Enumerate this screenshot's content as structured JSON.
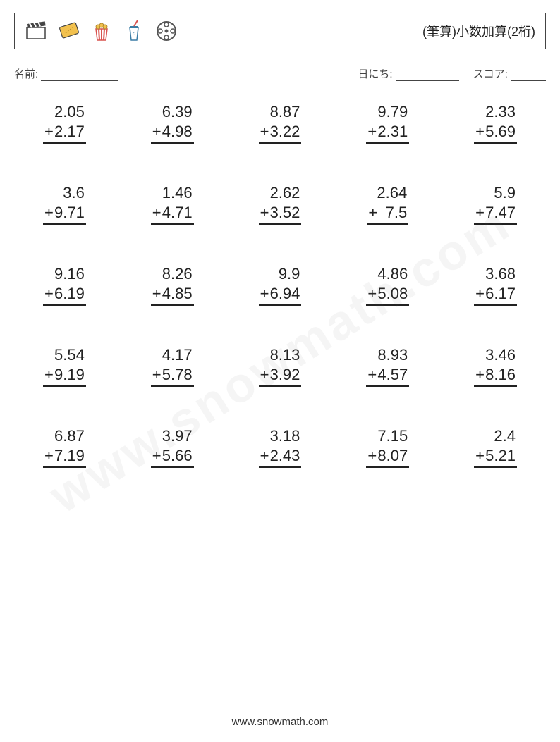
{
  "header": {
    "title": "(筆算)小数加算(2桁)",
    "icons": [
      "clapperboard",
      "ticket",
      "popcorn",
      "soda-cup",
      "film-reel"
    ]
  },
  "info": {
    "name_label": "名前:",
    "date_label": "日にち:",
    "score_label": "スコア:",
    "name_blank_width": 110,
    "date_blank_width": 90,
    "score_blank_width": 50
  },
  "operator": "+",
  "problems": [
    [
      {
        "a": "2.05",
        "b": "2.17"
      },
      {
        "a": "6.39",
        "b": "4.98"
      },
      {
        "a": "8.87",
        "b": "3.22"
      },
      {
        "a": "9.79",
        "b": "2.31"
      },
      {
        "a": "2.33",
        "b": "5.69"
      }
    ],
    [
      {
        "a": "3.6",
        "b": "9.71"
      },
      {
        "a": "1.46",
        "b": "4.71"
      },
      {
        "a": "2.62",
        "b": "3.52"
      },
      {
        "a": "2.64",
        "b": "7.5"
      },
      {
        "a": "5.9",
        "b": "7.47"
      }
    ],
    [
      {
        "a": "9.16",
        "b": "6.19"
      },
      {
        "a": "8.26",
        "b": "4.85"
      },
      {
        "a": "9.9",
        "b": "6.94"
      },
      {
        "a": "4.86",
        "b": "5.08"
      },
      {
        "a": "3.68",
        "b": "6.17"
      }
    ],
    [
      {
        "a": "5.54",
        "b": "9.19"
      },
      {
        "a": "4.17",
        "b": "5.78"
      },
      {
        "a": "8.13",
        "b": "3.92"
      },
      {
        "a": "8.93",
        "b": "4.57"
      },
      {
        "a": "3.46",
        "b": "8.16"
      }
    ],
    [
      {
        "a": "6.87",
        "b": "7.19"
      },
      {
        "a": "3.97",
        "b": "5.66"
      },
      {
        "a": "3.18",
        "b": "2.43"
      },
      {
        "a": "7.15",
        "b": "8.07"
      },
      {
        "a": "2.4",
        "b": "5.21"
      }
    ]
  ],
  "footer": "www.snowmath.com",
  "colors": {
    "text": "#222222",
    "border": "#444444",
    "background": "#ffffff",
    "icon_outline": "#444444",
    "icon_fill_yellow": "#f2c14e",
    "icon_fill_red": "#d9534f",
    "icon_fill_blue": "#3a7ca5",
    "icon_fill_gray": "#555555"
  }
}
